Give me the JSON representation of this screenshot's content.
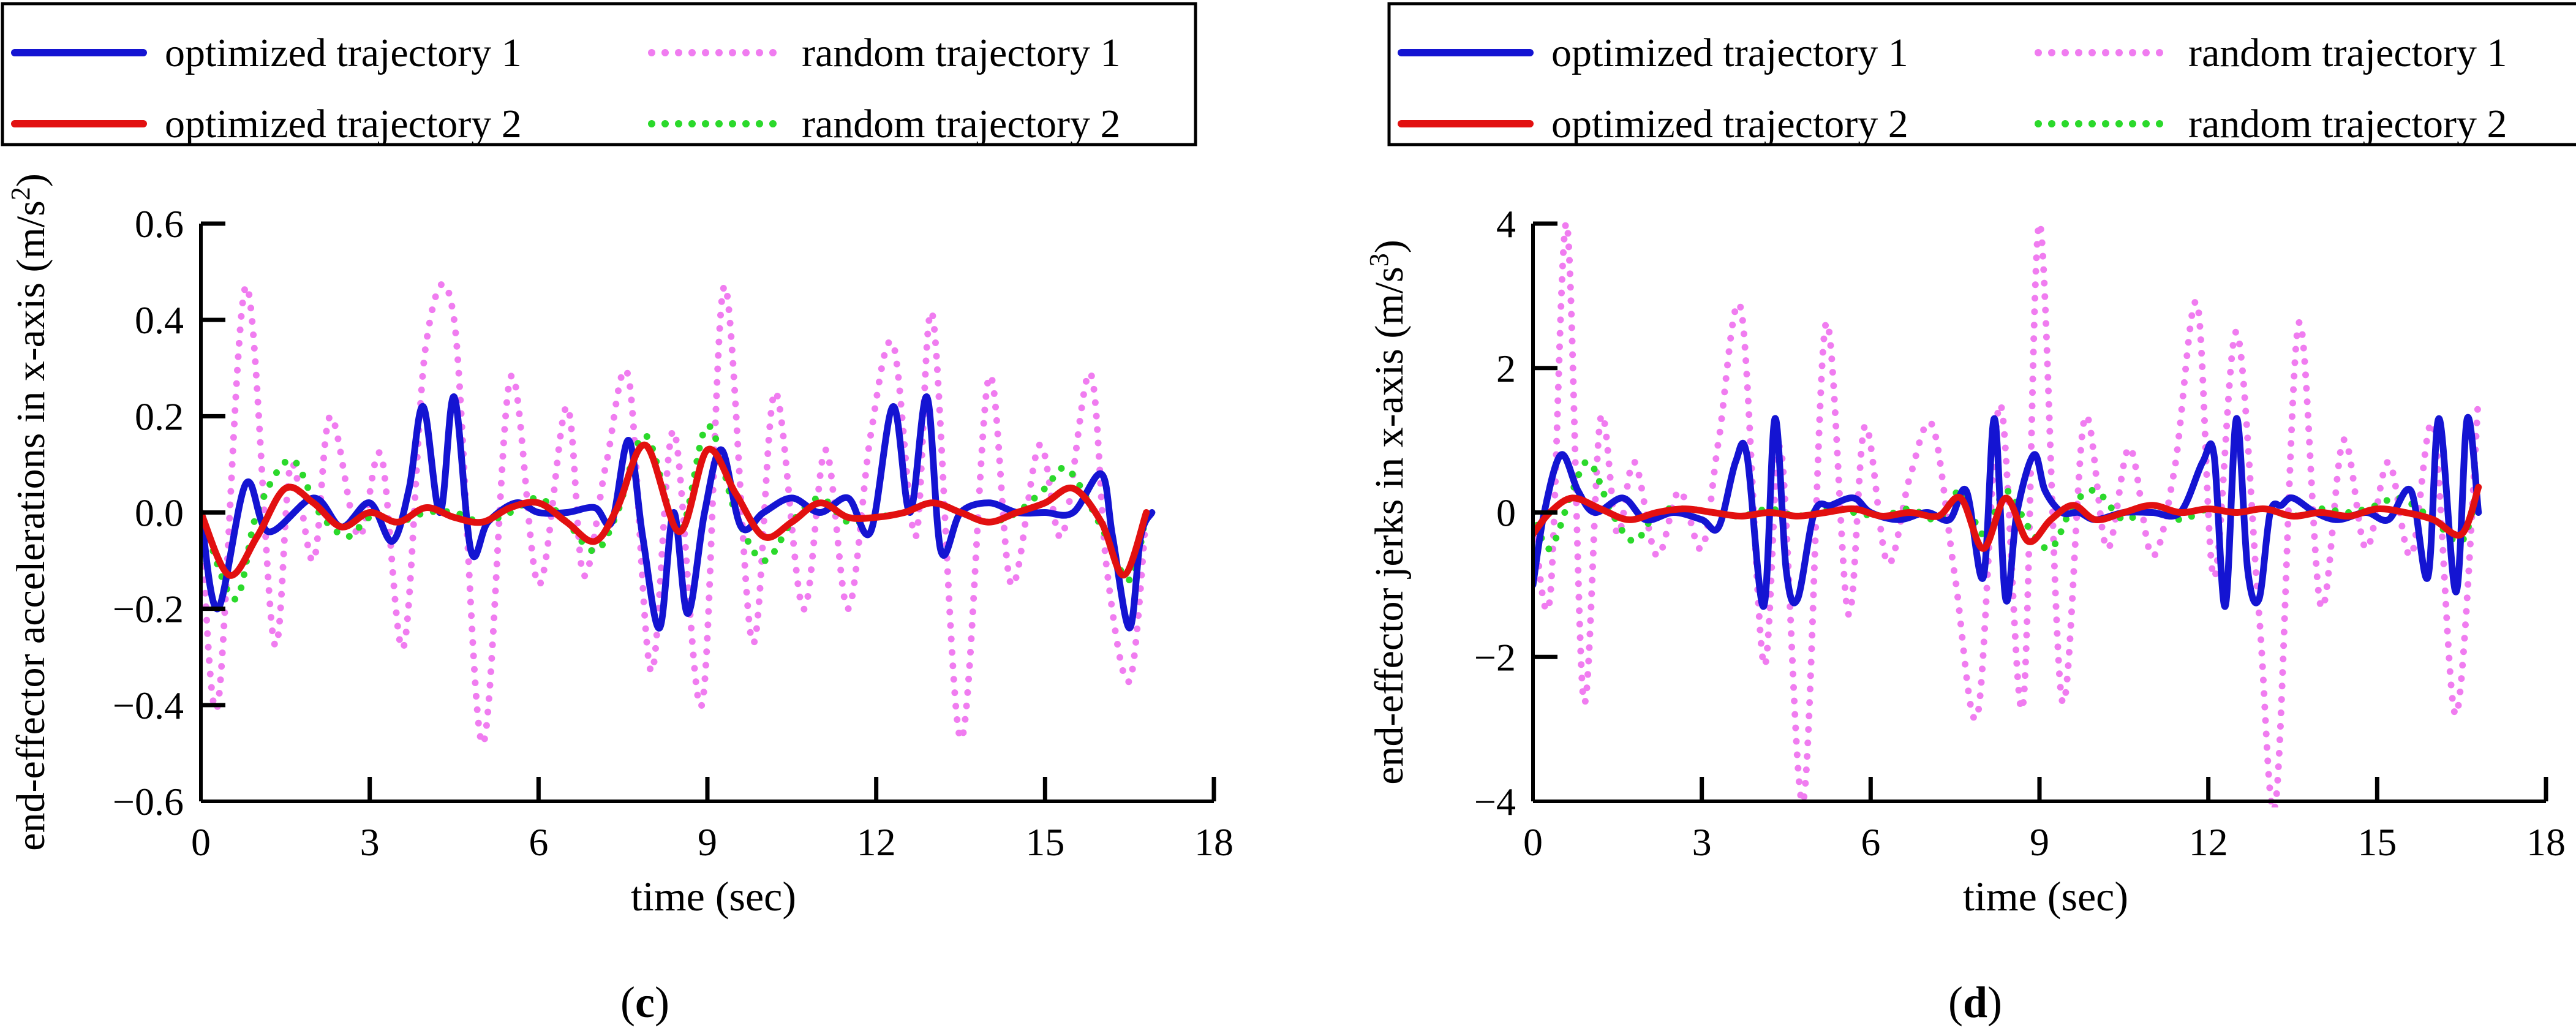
{
  "chart_data": [
    {
      "panel_label": "(c)",
      "type": "line",
      "xlabel": "time (sec)",
      "ylabel_main": "end-effector accelerations in x-axis (m/s",
      "ylabel_sup": "2",
      "ylabel_tail": ")",
      "xlim": [
        0,
        18
      ],
      "ylim": [
        -0.6,
        0.6
      ],
      "xticks": [
        0,
        3,
        6,
        9,
        12,
        15,
        18
      ],
      "yticks": [
        -0.6,
        -0.4,
        -0.2,
        0.0,
        0.2,
        0.4,
        0.6
      ],
      "ytick_labels": [
        "−0.6",
        "−0.4",
        "−0.2",
        "0.0",
        "0.2",
        "0.4",
        "0.6"
      ],
      "legend": [
        "optimized trajectory 1",
        "random trajectory 1",
        "optimized trajectory 2",
        "random trajectory 2"
      ],
      "series": [
        {
          "name": "optimized trajectory 1",
          "color": "#1414d2",
          "style": "solid",
          "x": [
            0,
            0.3,
            0.8,
            1.2,
            2.0,
            2.5,
            3.0,
            3.4,
            3.7,
            3.95,
            4.25,
            4.5,
            4.8,
            5.1,
            5.6,
            6.0,
            6.5,
            7.0,
            7.3,
            7.6,
            7.85,
            8.15,
            8.4,
            8.65,
            8.95,
            9.25,
            9.6,
            10.0,
            10.5,
            11.0,
            11.5,
            11.9,
            12.3,
            12.6,
            12.9,
            13.15,
            13.5,
            14.0,
            14.5,
            15.0,
            15.5,
            16.0,
            16.2,
            16.5,
            16.7,
            16.9
          ],
          "values": [
            0,
            -0.2,
            0.06,
            -0.04,
            0.03,
            -0.03,
            0.02,
            -0.06,
            0.05,
            0.22,
            0.0,
            0.24,
            -0.08,
            -0.02,
            0.02,
            0.0,
            0.0,
            0.01,
            -0.02,
            0.15,
            -0.05,
            -0.24,
            0.0,
            -0.21,
            0.0,
            0.13,
            -0.03,
            0.0,
            0.03,
            0.0,
            0.03,
            -0.04,
            0.22,
            0.0,
            0.24,
            -0.08,
            0.0,
            0.02,
            0.0,
            0.0,
            0.0,
            0.08,
            -0.05,
            -0.24,
            -0.05,
            0.0
          ]
        },
        {
          "name": "random trajectory 1",
          "color": "#f07cf0",
          "style": "dotted",
          "x": [
            0,
            0.3,
            0.8,
            1.3,
            1.6,
            2.0,
            2.3,
            2.8,
            3.2,
            3.6,
            4.0,
            4.5,
            5.0,
            5.5,
            6.0,
            6.5,
            6.8,
            7.2,
            7.6,
            8.0,
            8.4,
            8.9,
            9.3,
            9.8,
            10.2,
            10.7,
            11.1,
            11.5,
            11.9,
            12.3,
            12.7,
            13.0,
            13.5,
            14.0,
            14.4,
            14.9,
            15.3,
            15.8,
            16.1,
            16.5,
            16.8
          ],
          "values": [
            0,
            -0.4,
            0.47,
            -0.27,
            0.1,
            -0.1,
            0.2,
            -0.05,
            0.12,
            -0.28,
            0.35,
            0.4,
            -0.48,
            0.28,
            -0.15,
            0.22,
            -0.13,
            0.1,
            0.28,
            -0.33,
            0.17,
            -0.4,
            0.47,
            -0.27,
            0.25,
            -0.2,
            0.13,
            -0.2,
            0.16,
            0.35,
            -0.05,
            0.41,
            -0.47,
            0.28,
            -0.15,
            0.14,
            -0.05,
            0.29,
            -0.12,
            -0.35,
            0.0
          ]
        },
        {
          "name": "optimized trajectory 2",
          "color": "#e21010",
          "style": "solid",
          "x": [
            0,
            0.5,
            1.0,
            1.5,
            2.0,
            2.5,
            3.0,
            3.5,
            4.0,
            4.5,
            5.0,
            5.5,
            6.0,
            6.5,
            7.0,
            7.4,
            7.9,
            8.5,
            9.0,
            9.5,
            10.0,
            10.5,
            11.0,
            11.5,
            12.0,
            12.5,
            13.0,
            13.5,
            14.0,
            14.5,
            15.0,
            15.5,
            16.0,
            16.4,
            16.8
          ],
          "values": [
            0,
            -0.13,
            -0.05,
            0.05,
            0.02,
            -0.03,
            0.0,
            -0.02,
            0.01,
            -0.01,
            -0.02,
            0.01,
            0.02,
            -0.02,
            -0.06,
            0.01,
            0.14,
            -0.04,
            0.13,
            0.04,
            -0.05,
            -0.02,
            0.02,
            -0.01,
            -0.01,
            0.0,
            0.02,
            0.0,
            -0.02,
            0.0,
            0.02,
            0.05,
            -0.02,
            -0.13,
            0.0
          ]
        },
        {
          "name": "random trajectory 2",
          "color": "#2bd92b",
          "style": "dotted",
          "x": [
            0,
            0.6,
            1.0,
            1.6,
            2.1,
            2.6,
            3.0,
            3.5,
            4.0,
            4.5,
            5.0,
            5.5,
            6.0,
            6.5,
            7.0,
            7.4,
            7.9,
            8.5,
            9.0,
            9.5,
            10.0,
            10.5,
            11.0,
            11.5,
            12.0,
            12.5,
            13.0,
            13.5,
            14.0,
            14.5,
            15.0,
            15.4,
            16.0,
            16.5,
            16.8
          ],
          "values": [
            0,
            -0.18,
            0.0,
            0.11,
            0.0,
            -0.05,
            -0.01,
            -0.02,
            0.0,
            0.0,
            -0.02,
            0.0,
            0.03,
            -0.02,
            -0.08,
            0.0,
            0.16,
            -0.04,
            0.18,
            0.0,
            -0.1,
            -0.02,
            0.03,
            -0.02,
            -0.01,
            0.0,
            0.02,
            0.0,
            -0.02,
            0.0,
            0.05,
            0.09,
            -0.03,
            -0.14,
            0.0
          ]
        }
      ]
    },
    {
      "panel_label": "(d)",
      "type": "line",
      "xlabel": "time (sec)",
      "ylabel_main": "end-effector jerks in x-axis (m/s",
      "ylabel_sup": "3",
      "ylabel_tail": ")",
      "xlim": [
        0,
        18
      ],
      "ylim": [
        -4,
        4
      ],
      "xticks": [
        0,
        3,
        6,
        9,
        12,
        15,
        18
      ],
      "yticks": [
        -4,
        -2,
        0,
        2,
        4
      ],
      "ytick_labels": [
        "−4",
        "−2",
        "0",
        "2",
        "4"
      ],
      "legend": [
        "optimized trajectory 1",
        "random trajectory 1",
        "optimized trajectory 2",
        "random trajectory 2"
      ],
      "series": [
        {
          "name": "optimized trajectory 1",
          "color": "#1414d2",
          "style": "solid",
          "x": [
            0,
            0.2,
            0.5,
            0.8,
            1.1,
            1.6,
            2.0,
            2.5,
            3.0,
            3.3,
            3.6,
            3.8,
            4.1,
            4.3,
            4.5,
            4.7,
            5.0,
            5.3,
            5.7,
            6.0,
            6.5,
            7.0,
            7.4,
            7.7,
            8.0,
            8.2,
            8.4,
            8.6,
            8.9,
            9.1,
            9.4,
            9.7,
            10.0,
            10.5,
            11.0,
            11.5,
            11.9,
            12.1,
            12.3,
            12.5,
            12.7,
            12.9,
            13.1,
            13.3,
            13.5,
            13.9,
            14.3,
            14.8,
            15.2,
            15.6,
            15.9,
            16.1,
            16.4,
            16.6,
            16.8
          ],
          "values": [
            -1.0,
            0.0,
            0.8,
            0.3,
            0.0,
            0.2,
            -0.1,
            0.0,
            -0.1,
            -0.2,
            0.7,
            0.8,
            -1.3,
            1.3,
            -0.8,
            -1.2,
            0.0,
            0.1,
            0.2,
            0.0,
            -0.1,
            0.0,
            -0.1,
            0.3,
            -0.9,
            1.3,
            -1.2,
            0.0,
            0.8,
            0.3,
            0.0,
            0.0,
            -0.1,
            0.0,
            0.0,
            0.0,
            0.7,
            0.8,
            -1.3,
            1.3,
            -0.8,
            -1.2,
            0.0,
            0.1,
            0.2,
            0.0,
            -0.1,
            0.0,
            -0.1,
            0.3,
            -0.9,
            1.3,
            -1.1,
            1.3,
            0.0
          ]
        },
        {
          "name": "random trajectory 1",
          "color": "#f07cf0",
          "style": "dotted",
          "x": [
            0,
            0.3,
            0.6,
            0.9,
            1.2,
            1.5,
            1.8,
            2.2,
            2.6,
            3.0,
            3.3,
            3.7,
            4.1,
            4.4,
            4.8,
            5.2,
            5.6,
            5.9,
            6.3,
            6.7,
            7.1,
            7.5,
            7.9,
            8.3,
            8.7,
            9.0,
            9.4,
            9.8,
            10.2,
            10.6,
            11.0,
            11.4,
            11.8,
            12.1,
            12.5,
            12.9,
            13.2,
            13.6,
            14.0,
            14.4,
            14.8,
            15.2,
            15.6,
            16.0,
            16.4,
            16.8
          ],
          "values": [
            0,
            -1.2,
            4.0,
            -2.6,
            1.3,
            -0.3,
            0.7,
            -0.6,
            0.3,
            -0.5,
            1.0,
            2.8,
            -2.1,
            0.9,
            -4.0,
            2.6,
            -1.4,
            1.2,
            -0.7,
            0.5,
            1.2,
            -0.9,
            -2.8,
            1.5,
            -2.7,
            4.0,
            -2.6,
            1.3,
            -0.5,
            0.9,
            -0.6,
            0.6,
            2.9,
            -0.9,
            2.5,
            -1.4,
            -4.0,
            2.6,
            -1.3,
            1.0,
            -0.5,
            0.7,
            -0.6,
            1.2,
            -2.8,
            1.6
          ]
        },
        {
          "name": "optimized trajectory 2",
          "color": "#e21010",
          "style": "solid",
          "x": [
            0,
            0.3,
            0.7,
            1.2,
            1.7,
            2.2,
            2.7,
            3.2,
            3.7,
            4.2,
            4.7,
            5.2,
            5.7,
            6.2,
            6.7,
            7.2,
            7.6,
            8.0,
            8.4,
            8.8,
            9.2,
            9.6,
            10.0,
            10.5,
            11.0,
            11.5,
            12.0,
            12.5,
            13.0,
            13.5,
            14.0,
            14.5,
            15.0,
            15.5,
            16.0,
            16.5,
            16.8
          ],
          "values": [
            -0.3,
            0.0,
            0.2,
            0.05,
            -0.1,
            0.0,
            0.05,
            0.0,
            -0.05,
            0.0,
            -0.05,
            0.0,
            0.05,
            -0.05,
            0.0,
            -0.05,
            0.2,
            -0.5,
            0.2,
            -0.4,
            -0.1,
            0.1,
            -0.1,
            0.0,
            0.1,
            0.0,
            0.05,
            0.0,
            0.05,
            -0.05,
            0.0,
            -0.05,
            0.05,
            0.0,
            -0.1,
            -0.3,
            0.35
          ]
        },
        {
          "name": "random trajectory 2",
          "color": "#2bd92b",
          "style": "dotted",
          "x": [
            0,
            0.3,
            0.7,
            1.0,
            1.4,
            1.8,
            2.2,
            2.7,
            3.2,
            3.7,
            4.2,
            4.7,
            5.2,
            5.7,
            6.2,
            6.7,
            7.2,
            7.6,
            8.0,
            8.4,
            8.8,
            9.2,
            9.6,
            10.0,
            10.5,
            11.0,
            11.5,
            12.0,
            12.5,
            13.0,
            13.5,
            14.0,
            14.5,
            15.0,
            15.4,
            16.0,
            16.5,
            16.8
          ],
          "values": [
            0,
            -0.5,
            0.3,
            0.7,
            0.0,
            -0.4,
            0.0,
            0.05,
            0.0,
            -0.05,
            0.05,
            -0.05,
            0.05,
            0.0,
            -0.05,
            0.05,
            -0.1,
            0.3,
            -0.3,
            0.3,
            -0.2,
            -0.5,
            0.1,
            0.3,
            -0.1,
            0.1,
            -0.1,
            0.05,
            0.0,
            0.05,
            -0.05,
            0.05,
            0.0,
            0.1,
            0.2,
            -0.1,
            -0.4,
            0.4
          ]
        }
      ]
    }
  ]
}
